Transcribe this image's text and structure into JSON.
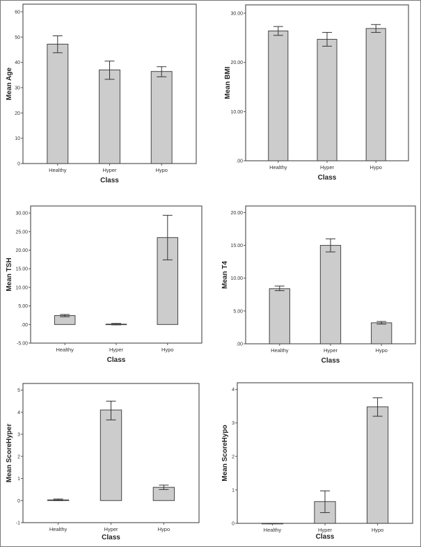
{
  "chart_data": [
    {
      "type": "bar",
      "ylabel": "Mean Age",
      "xlabel": "Class",
      "categories": [
        "Healthy",
        "Hyper",
        "Hypo"
      ],
      "values": [
        47.2,
        37.0,
        36.4
      ],
      "error_low": [
        43.8,
        33.3,
        34.3
      ],
      "error_high": [
        50.5,
        40.5,
        38.3
      ],
      "ylim": [
        0,
        63
      ],
      "yticks": [
        0,
        10,
        20,
        30,
        40,
        50,
        60
      ],
      "ytick_labels": [
        "0",
        "10",
        "20",
        "30",
        "40",
        "50",
        "60"
      ],
      "grid": false
    },
    {
      "type": "bar",
      "ylabel": "Mean BMI",
      "xlabel": "Class",
      "categories": [
        "Healthy",
        "Hyper",
        "Hypo"
      ],
      "values": [
        26.4,
        24.7,
        26.9
      ],
      "error_low": [
        25.5,
        23.3,
        26.1
      ],
      "error_high": [
        27.3,
        26.1,
        27.7
      ],
      "ylim": [
        0,
        31.7
      ],
      "yticks": [
        0,
        10,
        20,
        30
      ],
      "ytick_labels": [
        ".00",
        "10.00",
        "20.00",
        "30.00"
      ],
      "grid": false
    },
    {
      "type": "bar",
      "ylabel": "Mean TSH",
      "xlabel": "Class",
      "categories": [
        "Healthy",
        "Hyper",
        "Hypo"
      ],
      "values": [
        2.4,
        0.1,
        23.4
      ],
      "error_low": [
        2.1,
        -0.1,
        17.4
      ],
      "error_high": [
        2.7,
        0.3,
        29.4
      ],
      "ylim": [
        -5,
        31.9
      ],
      "yticks": [
        -5,
        0,
        5,
        10,
        15,
        20,
        25,
        30
      ],
      "ytick_labels": [
        "-5.00",
        ".00",
        "5.00",
        "10.00",
        "15.00",
        "20.00",
        "25.00",
        "30.00"
      ],
      "grid": false
    },
    {
      "type": "bar",
      "ylabel": "Mean T4",
      "xlabel": "Class",
      "categories": [
        "Healthy",
        "Hyper",
        "Hypo"
      ],
      "values": [
        8.4,
        15.0,
        3.2
      ],
      "error_low": [
        8.1,
        14.0,
        3.0
      ],
      "error_high": [
        8.8,
        16.0,
        3.4
      ],
      "ylim": [
        0,
        21
      ],
      "yticks": [
        0,
        5,
        10,
        15,
        20
      ],
      "ytick_labels": [
        ".00",
        "5.00",
        "10.00",
        "15.00",
        "20.00"
      ],
      "grid": false
    },
    {
      "type": "bar",
      "ylabel": "Mean ScoreHyper",
      "xlabel": "Class",
      "categories": [
        "Healthy",
        "Hyper",
        "Hypo"
      ],
      "values": [
        0.03,
        4.1,
        0.6
      ],
      "error_low": [
        0.0,
        3.65,
        0.5
      ],
      "error_high": [
        0.07,
        4.5,
        0.7
      ],
      "ylim": [
        -1,
        5.3
      ],
      "yticks": [
        -1,
        0,
        1,
        2,
        3,
        4,
        5
      ],
      "ytick_labels": [
        "-1",
        "0",
        "1",
        "2",
        "3",
        "4",
        "5"
      ],
      "grid": false
    },
    {
      "type": "bar",
      "ylabel": "Mean ScoreHypo",
      "xlabel": "Class",
      "categories": [
        "Healthy",
        "Hyper",
        "Hypo"
      ],
      "values": [
        0,
        0.65,
        3.48
      ],
      "error_low": [
        0,
        0.32,
        3.2
      ],
      "error_high": [
        0,
        0.97,
        3.75
      ],
      "ylim": [
        0,
        4.2
      ],
      "yticks": [
        0,
        1,
        2,
        3,
        4
      ],
      "ytick_labels": [
        "0",
        "1",
        "2",
        "3",
        "4"
      ],
      "grid": false
    }
  ],
  "colors": {
    "bar_fill": "#cccccc",
    "bar_stroke": "#444444",
    "axis": "#555555"
  }
}
